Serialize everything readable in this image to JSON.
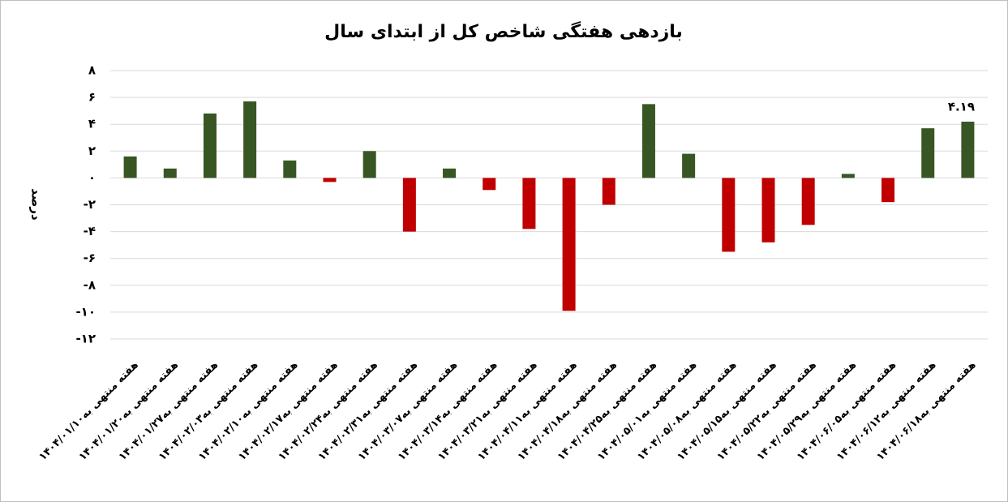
{
  "chart_data": {
    "type": "bar",
    "title": "بازدهی هفتگی شاخص کل از ابتدای سال",
    "y_label": "درصد",
    "categories": [
      "هفته منتهی به۱۴۰۴/۰۱/۱۰",
      "هفته منتهی به۱۴۰۴/۰۱/۲۰",
      "هفته منتهی به۱۴۰۴/۰۱/۲۷",
      "هفته منتهی به۱۴۰۴/۰۲/۰۳",
      "هفته منتهی به۱۴۰۴/۰۲/۱۰",
      "هفته منتهی به۱۴۰۴/۰۲/۱۷",
      "هفته منتهی به۱۴۰۴/۰۲/۲۴",
      "هفته منتهی به۱۴۰۴/۰۲/۳۱",
      "هفته منتهی به۱۴۰۴/۰۳/۰۷",
      "هفته منتهی به۱۴۰۴/۰۳/۱۴",
      "هفته منتهی به۱۴۰۴/۰۳/۲۱",
      "هفته منتهی به۱۴۰۴/۰۴/۱۱",
      "هفته منتهی به۱۴۰۴/۰۴/۱۸",
      "هفته منتهی به۱۴۰۴/۰۴/۲۵",
      "هفته منتهی به۱۴۰۴/۰۵/۰۱",
      "هفته منتهی به۱۴۰۴/۰۵/۰۸",
      "هفته منتهی به۱۴۰۴/۰۵/۱۵",
      "هفته منتهی به۱۴۰۴/۰۵/۲۲",
      "هفته منتهی به۱۴۰۴/۰۵/۲۹",
      "هفته منتهی به۱۴۰۴/۰۶/۰۵",
      "هفته منتهی به۱۴۰۴/۰۶/۱۲",
      "هفته منتهی به۱۴۰۴/۰۶/۱۸"
    ],
    "values": [
      1.6,
      0.7,
      4.8,
      5.7,
      1.3,
      -0.3,
      2.0,
      -4.0,
      0.7,
      -0.9,
      -3.8,
      -9.9,
      -2.0,
      5.5,
      1.8,
      -5.5,
      -4.8,
      -3.5,
      0.3,
      -1.8,
      3.7,
      4.19
    ],
    "value_labels": [
      null,
      null,
      null,
      null,
      null,
      null,
      null,
      null,
      null,
      null,
      null,
      null,
      null,
      null,
      null,
      null,
      null,
      null,
      null,
      null,
      null,
      "۴.۱۹"
    ],
    "positive_color": "#375623",
    "negative_color": "#c00000",
    "ylim": [
      -12,
      8
    ],
    "yticks": [
      {
        "value": -12,
        "label": "-۱۲"
      },
      {
        "value": -10,
        "label": "-۱۰"
      },
      {
        "value": -8,
        "label": "-۸"
      },
      {
        "value": -6,
        "label": "-۶"
      },
      {
        "value": -4,
        "label": "-۴"
      },
      {
        "value": -2,
        "label": "-۲"
      },
      {
        "value": 0,
        "label": "۰"
      },
      {
        "value": 2,
        "label": "۲"
      },
      {
        "value": 4,
        "label": "۴"
      },
      {
        "value": 6,
        "label": "۶"
      },
      {
        "value": 8,
        "label": "۸"
      }
    ],
    "grid": true
  }
}
